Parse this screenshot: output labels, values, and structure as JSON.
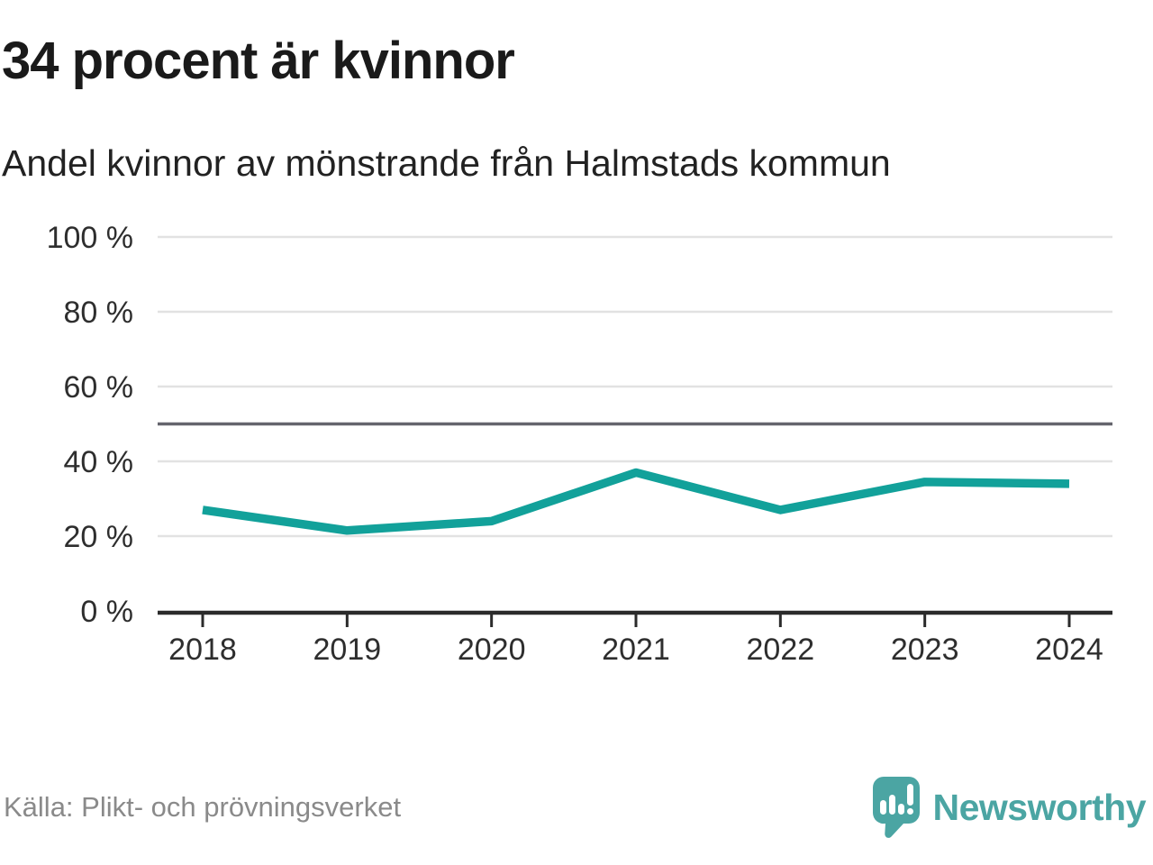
{
  "header": {
    "title": "34 procent är kvinnor",
    "subtitle": "Andel kvinnor av mönstrande från Halmstads kommun"
  },
  "chart_data": {
    "type": "line",
    "title": "34 procent är kvinnor",
    "subtitle": "Andel kvinnor av mönstrande från Halmstads kommun",
    "categories": [
      "2018",
      "2019",
      "2020",
      "2021",
      "2022",
      "2023",
      "2024"
    ],
    "values": [
      27,
      21.5,
      24,
      37,
      27,
      34.5,
      34
    ],
    "unit": "%",
    "ylim": [
      0,
      100
    ],
    "yticks": [
      {
        "value": 0,
        "label": "0 %"
      },
      {
        "value": 20,
        "label": "20 %"
      },
      {
        "value": 40,
        "label": "40 %"
      },
      {
        "value": 60,
        "label": "60 %"
      },
      {
        "value": 80,
        "label": "80 %"
      },
      {
        "value": 100,
        "label": "100 %"
      }
    ],
    "reference_line": {
      "value": 50
    },
    "grid": "horizontal",
    "legend": "none",
    "xlabel": "",
    "ylabel": ""
  },
  "footer": {
    "source": "Källa: Plikt- och prövningsverket",
    "brand": "Newsworthy"
  },
  "colors": {
    "accent": "#12a19a",
    "grid": "#e2e2e2",
    "reference": "#65656d",
    "axis": "#2b2b2b",
    "tick_text": "#2e2e2e",
    "muted_text": "#8a8a8a",
    "brand": "#4ba5a3"
  }
}
